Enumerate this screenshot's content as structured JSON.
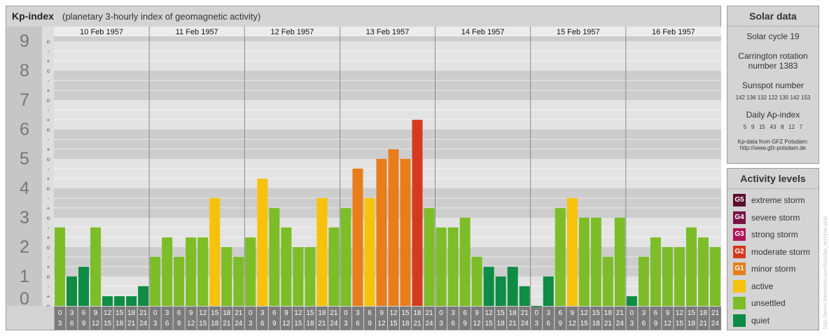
{
  "header": {
    "title": "Kp-index",
    "subtitle": "(planetary 3-hourly index of geomagnetic activity)"
  },
  "solar": {
    "heading": "Solar data",
    "cycle": "Solar cycle 19",
    "carrington_1": "Carrington rotation",
    "carrington_2": "number 1383",
    "sunspot_heading": "Sunspot number",
    "sunspots": "142 136 132 122 130 142 153",
    "ap_heading": "Daily Ap-index",
    "ap_values": "5   9   15   43   8   12   7",
    "source_1": "Kp-data from GFZ Potsdam:",
    "source_2": "http://www.gfz-potsdam.de"
  },
  "legend": {
    "heading": "Activity levels",
    "items": [
      {
        "code": "G5",
        "label": "extreme storm",
        "color": "#5a0a2a"
      },
      {
        "code": "G4",
        "label": "severe storm",
        "color": "#7a1248"
      },
      {
        "code": "G3",
        "label": "strong storm",
        "color": "#b0145a"
      },
      {
        "code": "G2",
        "label": "moderate storm",
        "color": "#d63a1e"
      },
      {
        "code": "G1",
        "label": "minor storm",
        "color": "#e87d1a"
      },
      {
        "code": "",
        "label": "active",
        "color": "#f7c20a"
      },
      {
        "code": "",
        "label": "unsettled",
        "color": "#7cbd28"
      },
      {
        "code": "",
        "label": "quiet",
        "color": "#0e8b44"
      }
    ]
  },
  "credit": "http://www.freewebs.com/kurt/kp_archive.php",
  "chart_data": {
    "type": "bar",
    "title": "Kp-index",
    "ylim": [
      0,
      9
    ],
    "y_ticks": [
      "0",
      "1",
      "2",
      "3",
      "4",
      "5",
      "6",
      "7",
      "8",
      "9"
    ],
    "minor_marks": [
      "o",
      "+",
      "-"
    ],
    "days": [
      "10 Feb 1957",
      "11 Feb 1957",
      "12 Feb 1957",
      "13 Feb 1957",
      "14 Feb 1957",
      "15 Feb 1957",
      "16 Feb 1957"
    ],
    "slot_start": [
      "0",
      "3",
      "6",
      "9",
      "12",
      "15",
      "18",
      "21"
    ],
    "slot_end": [
      "3",
      "6",
      "9",
      "12",
      "15",
      "18",
      "21",
      "24"
    ],
    "colors": {
      "quiet": "#0e8b44",
      "unsettled": "#7cbd28",
      "active": "#f7c20a",
      "G1": "#e87d1a",
      "G2": "#d63a1e"
    },
    "values": [
      2.67,
      1.0,
      1.33,
      2.67,
      0.33,
      0.33,
      0.33,
      0.67,
      1.67,
      2.33,
      1.67,
      2.33,
      2.33,
      3.67,
      2.0,
      1.67,
      2.33,
      4.33,
      3.33,
      2.67,
      2.0,
      2.0,
      3.67,
      2.67,
      3.33,
      4.67,
      3.67,
      5.0,
      5.33,
      5.0,
      6.33,
      3.33,
      2.67,
      2.67,
      3.0,
      1.67,
      1.33,
      1.0,
      1.33,
      0.67,
      0.0,
      1.0,
      3.33,
      3.67,
      3.0,
      3.0,
      1.67,
      3.0,
      0.33,
      1.67,
      2.33,
      2.0,
      2.0,
      2.67,
      2.33,
      2.0
    ]
  }
}
